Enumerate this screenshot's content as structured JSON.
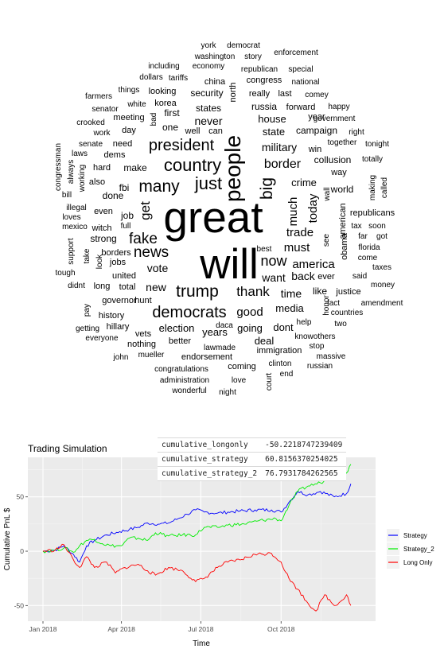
{
  "wordcloud": [
    [
      "great",
      55
    ],
    [
      "will",
      53
    ],
    [
      "people",
      28
    ],
    [
      "country",
      22
    ],
    [
      "just",
      22
    ],
    [
      "trump",
      21
    ],
    [
      "many",
      21
    ],
    [
      "big",
      21
    ],
    [
      "democrats",
      20
    ],
    [
      "president",
      20
    ],
    [
      "fake",
      19
    ],
    [
      "news",
      19
    ],
    [
      "now",
      18
    ],
    [
      "thank",
      17
    ],
    [
      "get",
      17
    ],
    [
      "border",
      16
    ],
    [
      "good",
      15
    ],
    [
      "much",
      15
    ],
    [
      "today",
      15
    ],
    [
      "trade",
      15
    ],
    [
      "must",
      15
    ],
    [
      "america",
      15
    ],
    [
      "want",
      14
    ],
    [
      "time",
      14
    ],
    [
      "back",
      14
    ],
    [
      "military",
      14
    ],
    [
      "never",
      14
    ],
    [
      "new",
      14
    ],
    [
      "vote",
      14
    ],
    [
      "state",
      13
    ],
    [
      "house",
      13
    ],
    [
      "crime",
      13
    ],
    [
      "election",
      13
    ],
    [
      "years",
      13
    ],
    [
      "going",
      13
    ],
    [
      "dont",
      13
    ],
    [
      "media",
      13
    ],
    [
      "deal",
      13
    ],
    [
      "campaign",
      12
    ],
    [
      "collusion",
      12
    ],
    [
      "world",
      12
    ],
    [
      "republicans",
      11
    ],
    [
      "obama",
      11
    ],
    [
      "first",
      12
    ],
    [
      "one",
      12
    ],
    [
      "north",
      11
    ],
    [
      "well",
      11
    ],
    [
      "can",
      11
    ],
    [
      "states",
      12
    ],
    [
      "security",
      12
    ],
    [
      "russia",
      12
    ],
    [
      "forward",
      11
    ],
    [
      "congress",
      11
    ],
    [
      "china",
      11
    ],
    [
      "really",
      11
    ],
    [
      "last",
      11
    ],
    [
      "hunt",
      11
    ],
    [
      "united",
      11
    ],
    [
      "total",
      11
    ],
    [
      "job",
      12
    ],
    [
      "fbi",
      12
    ],
    [
      "even",
      11
    ],
    [
      "strong",
      12
    ],
    [
      "borders",
      11
    ],
    [
      "jobs",
      11
    ],
    [
      "make",
      12
    ],
    [
      "hard",
      11
    ],
    [
      "dems",
      11
    ],
    [
      "day",
      11
    ],
    [
      "meeting",
      11
    ],
    [
      "korea",
      11
    ],
    [
      "looking",
      11
    ],
    [
      "better",
      11
    ],
    [
      "lawmade",
      10
    ],
    [
      "endorsement",
      11
    ],
    [
      "immigration",
      11
    ],
    [
      "history",
      11
    ],
    [
      "hillary",
      11
    ],
    [
      "vets",
      11
    ],
    [
      "nothing",
      11
    ],
    [
      "congratulations",
      10
    ],
    [
      "coming",
      11
    ],
    [
      "clinton",
      10
    ],
    [
      "administration",
      10
    ],
    [
      "wonderful",
      10
    ],
    [
      "love",
      10
    ],
    [
      "night",
      10
    ],
    [
      "court",
      10
    ],
    [
      "end",
      10
    ],
    [
      "massive",
      10
    ],
    [
      "russian",
      10
    ],
    [
      "knowothers",
      10
    ],
    [
      "stop",
      10
    ],
    [
      "help",
      10
    ],
    [
      "two",
      10
    ],
    [
      "amendment",
      10
    ],
    [
      "fact",
      10
    ],
    [
      "countries",
      10
    ],
    [
      "honor",
      10
    ],
    [
      "like",
      12
    ],
    [
      "justice",
      11
    ],
    [
      "money",
      10
    ],
    [
      "said",
      10
    ],
    [
      "taxes",
      10
    ],
    [
      "come",
      10
    ],
    [
      "florida",
      10
    ],
    [
      "far",
      10
    ],
    [
      "got",
      10
    ],
    [
      "tax",
      10
    ],
    [
      "soon",
      10
    ],
    [
      "american",
      11
    ],
    [
      "see",
      10
    ],
    [
      "called",
      10
    ],
    [
      "making",
      10
    ],
    [
      "way",
      11
    ],
    [
      "totally",
      10
    ],
    [
      "tonight",
      10
    ],
    [
      "together",
      10
    ],
    [
      "win",
      11
    ],
    [
      "right",
      10
    ],
    [
      "government",
      10
    ],
    [
      "year",
      11
    ],
    [
      "happy",
      10
    ],
    [
      "comey",
      10
    ],
    [
      "national",
      10
    ],
    [
      "special",
      10
    ],
    [
      "republican",
      10
    ],
    [
      "enforcement",
      10
    ],
    [
      "story",
      10
    ],
    [
      "democrat",
      10
    ],
    [
      "york",
      10
    ],
    [
      "washington",
      10
    ],
    [
      "economy",
      10
    ],
    [
      "including",
      10
    ],
    [
      "dollars",
      10
    ],
    [
      "tariffs",
      10
    ],
    [
      "things",
      10
    ],
    [
      "white",
      10
    ],
    [
      "farmers",
      10
    ],
    [
      "senator",
      10
    ],
    [
      "crooked",
      10
    ],
    [
      "work",
      10
    ],
    [
      "need",
      11
    ],
    [
      "senate",
      10
    ],
    [
      "laws",
      10
    ],
    [
      "working",
      10
    ],
    [
      "always",
      10
    ],
    [
      "congressman",
      10
    ],
    [
      "also",
      11
    ],
    [
      "done",
      12
    ],
    [
      "illegal",
      10
    ],
    [
      "bill",
      10
    ],
    [
      "loves",
      10
    ],
    [
      "mexico",
      10
    ],
    [
      "witch",
      11
    ],
    [
      "full",
      10
    ],
    [
      "take",
      10
    ],
    [
      "look",
      10
    ],
    [
      "support",
      10
    ],
    [
      "tough",
      10
    ],
    [
      "didnt",
      10
    ],
    [
      "long",
      11
    ],
    [
      "governor",
      11
    ],
    [
      "pay",
      10
    ],
    [
      "getting",
      10
    ],
    [
      "everyone",
      10
    ],
    [
      "john",
      10
    ],
    [
      "mueller",
      10
    ],
    [
      "best",
      10
    ],
    [
      "daca",
      10
    ],
    [
      "bad",
      10
    ],
    [
      "wall",
      10
    ],
    [
      "ever",
      11
    ]
  ],
  "legend": {
    "items": [
      {
        "label": "Strategy",
        "color": "#0000ff"
      },
      {
        "label": "Strategy_2",
        "color": "#00ee00"
      },
      {
        "label": "Long Only",
        "color": "#ff0000"
      }
    ]
  },
  "stats": [
    {
      "label": "cumulative_longonly",
      "value": "-50.2218747239409"
    },
    {
      "label": "cumulative_strategy",
      "value": "60.8156370254025"
    },
    {
      "label": "cumulative_strategy_2",
      "value": "76.7931784262565"
    }
  ],
  "chart_data": {
    "type": "line",
    "title": "Trading Simulation",
    "xlabel": "Time",
    "ylabel": "Cumulative PnL $",
    "x_ticks": [
      "Jan 2018",
      "Apr 2018",
      "Jul 2018",
      "Oct 2018"
    ],
    "y_ticks": [
      -50,
      0,
      50
    ],
    "xlim": [
      "2018-01-01",
      "2018-12-31"
    ],
    "ylim": [
      -60,
      82
    ],
    "grid": true,
    "legend_position": "right",
    "series": [
      {
        "name": "Strategy",
        "color": "#0000ff",
        "points": [
          [
            "2018-01-01",
            0
          ],
          [
            "2018-01-15",
            1
          ],
          [
            "2018-01-25",
            5
          ],
          [
            "2018-02-05",
            -3
          ],
          [
            "2018-02-12",
            -10
          ],
          [
            "2018-02-20",
            5
          ],
          [
            "2018-03-01",
            10
          ],
          [
            "2018-03-15",
            15
          ],
          [
            "2018-03-30",
            18
          ],
          [
            "2018-04-10",
            20
          ],
          [
            "2018-04-20",
            22
          ],
          [
            "2018-05-01",
            26
          ],
          [
            "2018-05-15",
            25
          ],
          [
            "2018-05-25",
            26
          ],
          [
            "2018-06-05",
            30
          ],
          [
            "2018-06-15",
            34
          ],
          [
            "2018-06-25",
            38
          ],
          [
            "2018-07-05",
            36
          ],
          [
            "2018-07-20",
            35
          ],
          [
            "2018-08-01",
            36
          ],
          [
            "2018-08-15",
            37
          ],
          [
            "2018-09-01",
            38
          ],
          [
            "2018-09-20",
            38
          ],
          [
            "2018-10-01",
            36
          ],
          [
            "2018-10-10",
            45
          ],
          [
            "2018-10-20",
            55
          ],
          [
            "2018-11-01",
            52
          ],
          [
            "2018-11-15",
            55
          ],
          [
            "2018-12-01",
            50
          ],
          [
            "2018-12-15",
            53
          ],
          [
            "2018-12-20",
            62
          ]
        ]
      },
      {
        "name": "Strategy_2",
        "color": "#00ee00",
        "points": [
          [
            "2018-01-01",
            0
          ],
          [
            "2018-01-15",
            1
          ],
          [
            "2018-01-25",
            3
          ],
          [
            "2018-02-05",
            -1
          ],
          [
            "2018-02-12",
            5
          ],
          [
            "2018-02-20",
            10
          ],
          [
            "2018-03-01",
            11
          ],
          [
            "2018-03-10",
            7
          ],
          [
            "2018-03-20",
            5
          ],
          [
            "2018-04-01",
            5
          ],
          [
            "2018-04-10",
            12
          ],
          [
            "2018-04-20",
            12
          ],
          [
            "2018-05-01",
            10
          ],
          [
            "2018-05-10",
            17
          ],
          [
            "2018-05-25",
            14
          ],
          [
            "2018-06-10",
            15
          ],
          [
            "2018-06-25",
            15
          ],
          [
            "2018-07-05",
            22
          ],
          [
            "2018-07-20",
            22
          ],
          [
            "2018-08-01",
            24
          ],
          [
            "2018-08-20",
            25
          ],
          [
            "2018-09-05",
            28
          ],
          [
            "2018-09-25",
            30
          ],
          [
            "2018-10-01",
            28
          ],
          [
            "2018-10-10",
            42
          ],
          [
            "2018-10-20",
            55
          ],
          [
            "2018-11-01",
            60
          ],
          [
            "2018-11-15",
            63
          ],
          [
            "2018-12-01",
            70
          ],
          [
            "2018-12-15",
            72
          ],
          [
            "2018-12-20",
            80
          ]
        ]
      },
      {
        "name": "Long Only",
        "color": "#ff0000",
        "points": [
          [
            "2018-01-01",
            0
          ],
          [
            "2018-01-15",
            1
          ],
          [
            "2018-01-25",
            6
          ],
          [
            "2018-02-05",
            -8
          ],
          [
            "2018-02-12",
            -15
          ],
          [
            "2018-02-20",
            -5
          ],
          [
            "2018-03-01",
            -15
          ],
          [
            "2018-03-15",
            -10
          ],
          [
            "2018-03-25",
            -20
          ],
          [
            "2018-04-05",
            -15
          ],
          [
            "2018-04-20",
            -12
          ],
          [
            "2018-05-01",
            -18
          ],
          [
            "2018-05-10",
            -22
          ],
          [
            "2018-05-25",
            -15
          ],
          [
            "2018-06-10",
            -18
          ],
          [
            "2018-06-25",
            -28
          ],
          [
            "2018-07-05",
            -25
          ],
          [
            "2018-07-20",
            -15
          ],
          [
            "2018-08-01",
            -10
          ],
          [
            "2018-08-15",
            -8
          ],
          [
            "2018-09-01",
            -3
          ],
          [
            "2018-09-20",
            -2
          ],
          [
            "2018-10-01",
            -10
          ],
          [
            "2018-10-10",
            -25
          ],
          [
            "2018-10-20",
            -35
          ],
          [
            "2018-11-01",
            -48
          ],
          [
            "2018-11-10",
            -55
          ],
          [
            "2018-11-20",
            -40
          ],
          [
            "2018-12-01",
            -50
          ],
          [
            "2018-12-10",
            -45
          ],
          [
            "2018-12-15",
            -40
          ],
          [
            "2018-12-20",
            -50
          ]
        ]
      }
    ]
  }
}
